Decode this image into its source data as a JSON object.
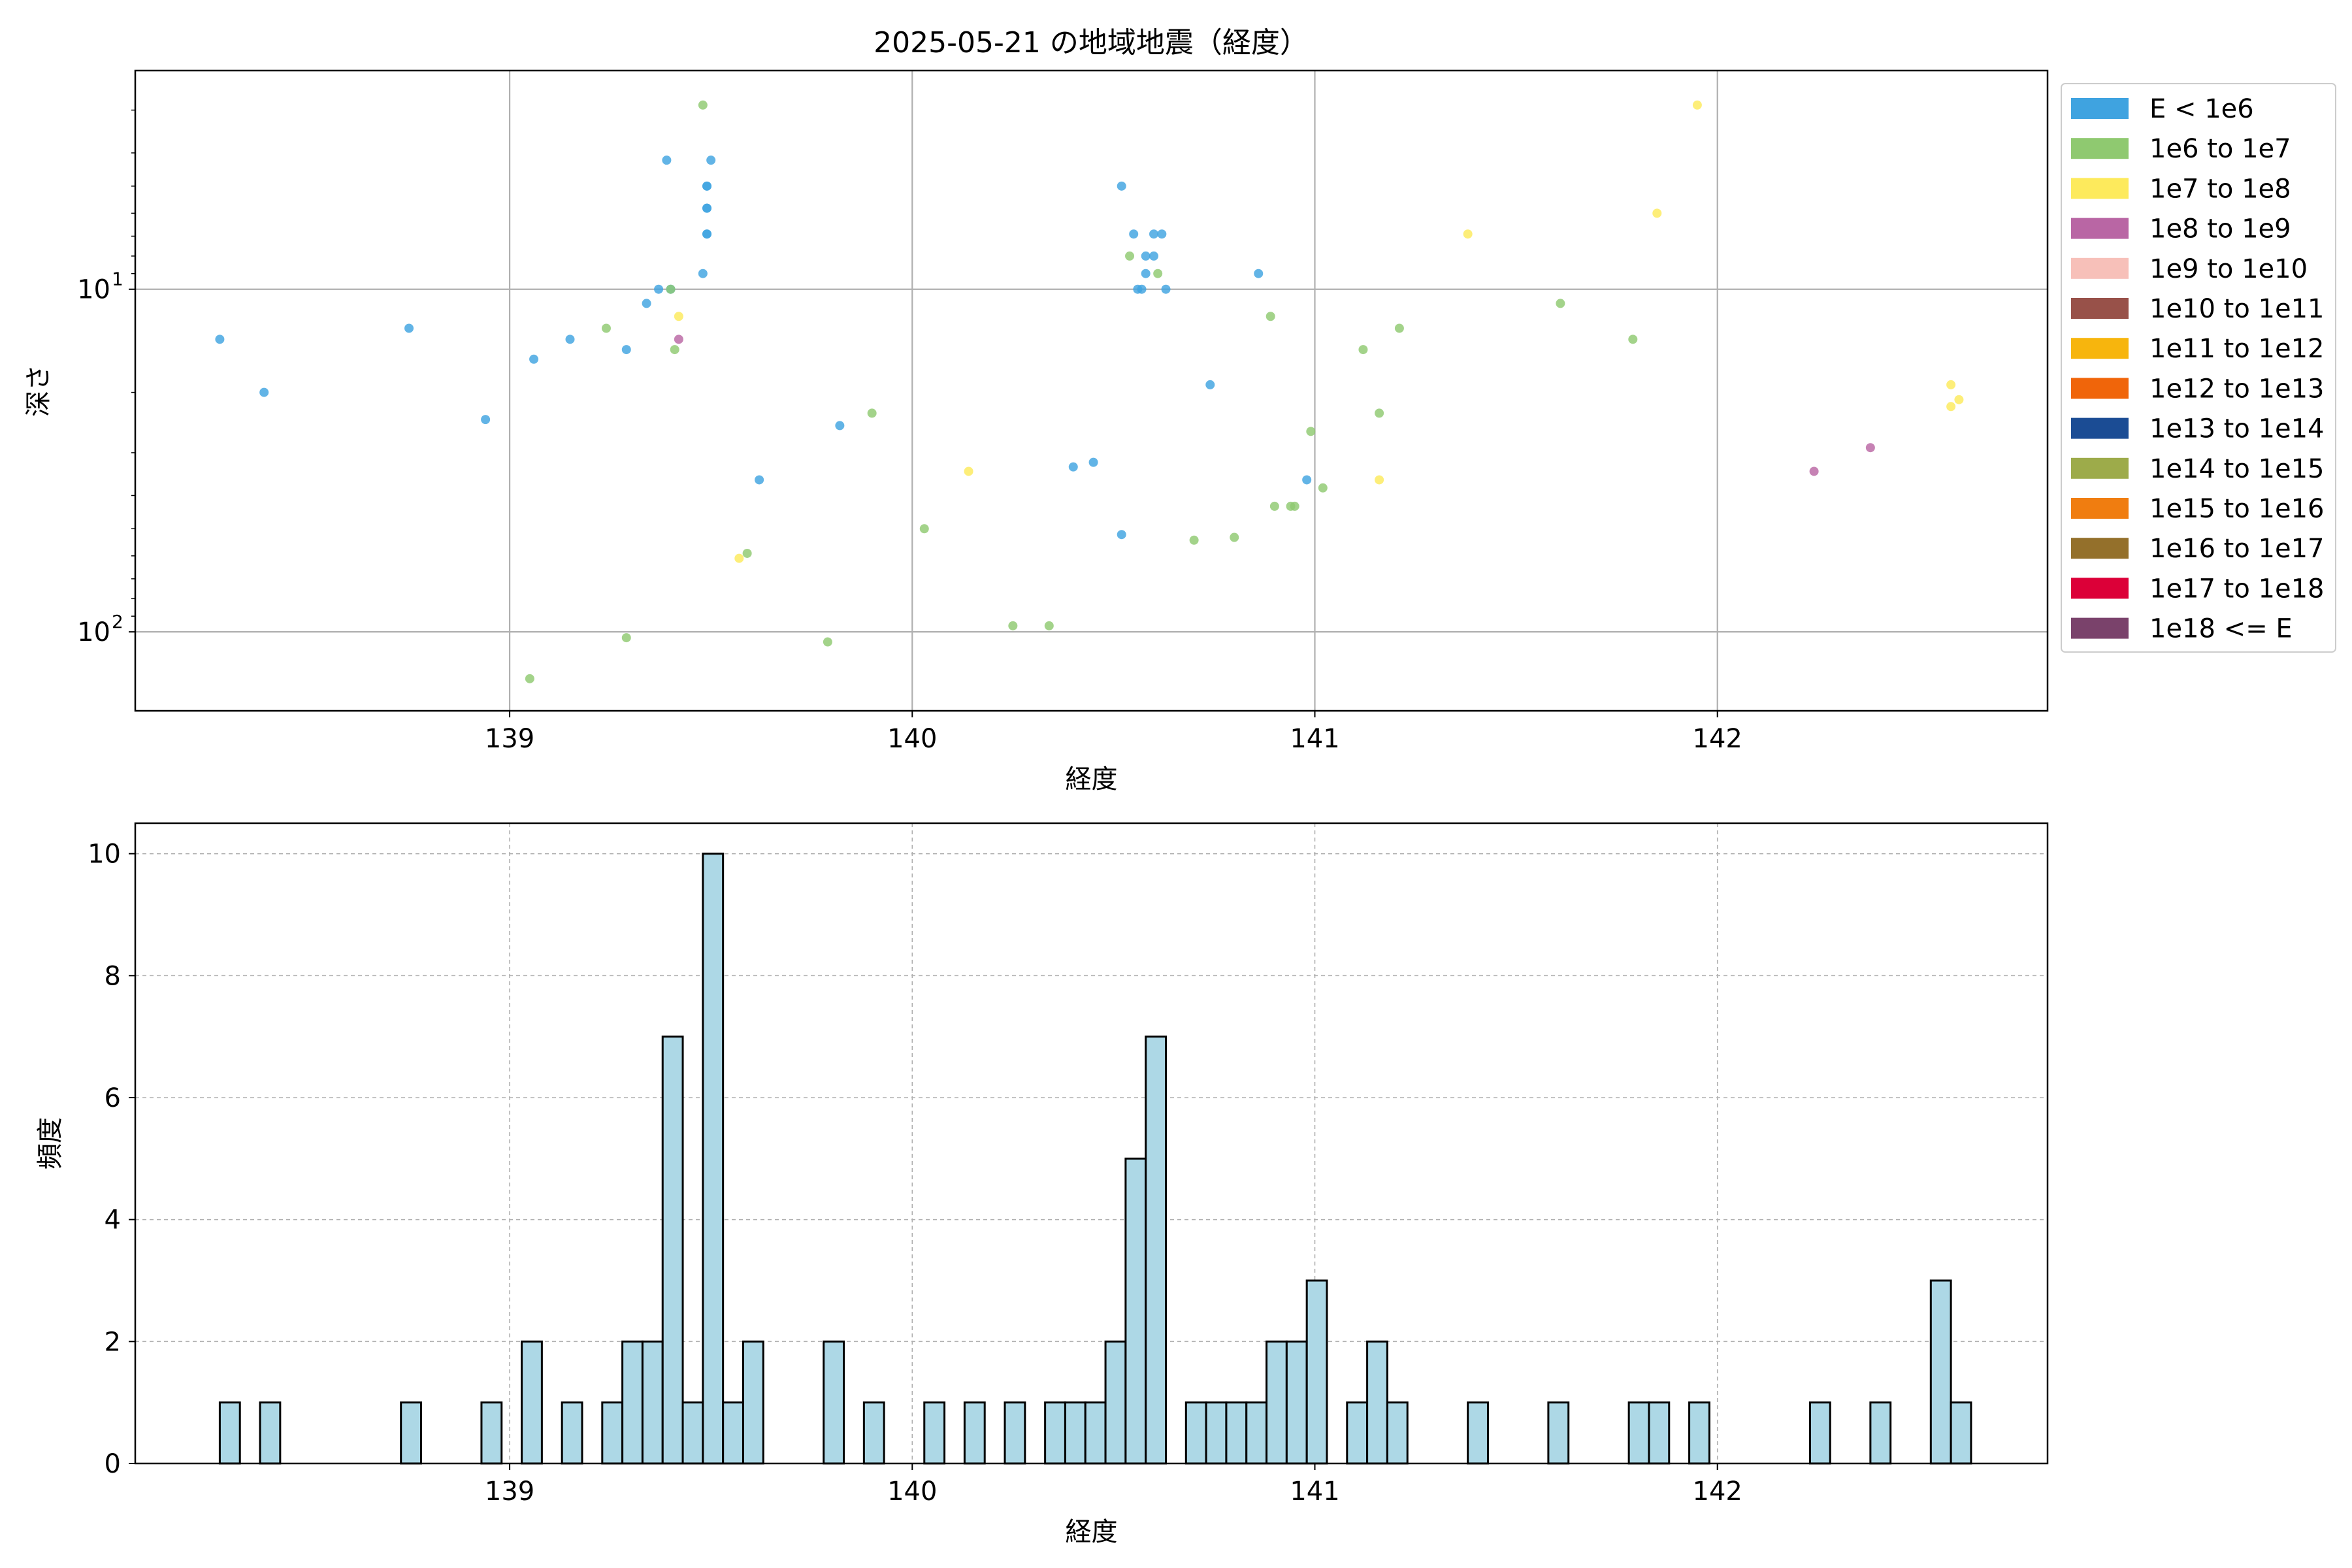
{
  "figure": {
    "title": "2025-05-21 の地域地震（経度）"
  },
  "chart_data": [
    {
      "type": "scatter",
      "title": "2025-05-21 の地域地震（経度）",
      "xlabel": "経度",
      "ylabel": "深さ",
      "xlim": [
        138.07,
        142.82
      ],
      "ylim": [
        170,
        2.3
      ],
      "yscale": "log-inverted",
      "grid": true,
      "legend_placement": "outside-right",
      "xticks": [
        {
          "value": 139,
          "label": "139"
        },
        {
          "value": 140,
          "label": "140"
        },
        {
          "value": 141,
          "label": "141"
        },
        {
          "value": 142,
          "label": "142"
        }
      ],
      "yticks": [
        {
          "value": 10,
          "label": "10",
          "exp": "1"
        },
        {
          "value": 100,
          "label": "10",
          "exp": "2"
        }
      ],
      "legend": [
        {
          "label": "E < 1e6",
          "color": "#3fa3e0"
        },
        {
          "label": "1e6 to 1e7",
          "color": "#8fc970"
        },
        {
          "label": "1e7 to 1e8",
          "color": "#fdea5c"
        },
        {
          "label": "1e8 to 1e9",
          "color": "#b966a4"
        },
        {
          "label": "1e9 to 1e10",
          "color": "#f7c0b9"
        },
        {
          "label": "1e10 to 1e11",
          "color": "#985149"
        },
        {
          "label": "1e11 to 1e12",
          "color": "#f7b50d"
        },
        {
          "label": "1e12 to 1e13",
          "color": "#f0650a"
        },
        {
          "label": "1e13 to 1e14",
          "color": "#1b4c94"
        },
        {
          "label": "1e14 to 1e15",
          "color": "#9dab4a"
        },
        {
          "label": "1e15 to 1e16",
          "color": "#f07d10"
        },
        {
          "label": "1e16 to 1e17",
          "color": "#94702b"
        },
        {
          "label": "1e17 to 1e18",
          "color": "#dc0038"
        },
        {
          "label": "1e18 <= E",
          "color": "#7a426b"
        }
      ],
      "series": [
        {
          "name": "E < 1e6",
          "points": [
            [
              138.28,
              14
            ],
            [
              138.39,
              20
            ],
            [
              138.75,
              13
            ],
            [
              138.94,
              24
            ],
            [
              139.06,
              16
            ],
            [
              139.15,
              14
            ],
            [
              139.29,
              15
            ],
            [
              139.34,
              11
            ],
            [
              139.37,
              10
            ],
            [
              139.4,
              10
            ],
            [
              139.39,
              4.2
            ],
            [
              139.48,
              9
            ],
            [
              139.49,
              6.9
            ],
            [
              139.49,
              6.9
            ],
            [
              139.49,
              5.8
            ],
            [
              139.49,
              5.8
            ],
            [
              139.49,
              5
            ],
            [
              139.49,
              5
            ],
            [
              139.5,
              4.2
            ],
            [
              139.62,
              36
            ],
            [
              139.82,
              25
            ],
            [
              140.4,
              33
            ],
            [
              140.45,
              32
            ],
            [
              140.52,
              52
            ],
            [
              140.52,
              5
            ],
            [
              140.55,
              6.9
            ],
            [
              140.56,
              10
            ],
            [
              140.57,
              10
            ],
            [
              140.58,
              9
            ],
            [
              140.58,
              8
            ],
            [
              140.6,
              8
            ],
            [
              140.6,
              6.9
            ],
            [
              140.62,
              6.9
            ],
            [
              140.63,
              10
            ],
            [
              140.74,
              19
            ],
            [
              140.86,
              9
            ],
            [
              140.98,
              36
            ]
          ]
        },
        {
          "name": "1e6 to 1e7",
          "points": [
            [
              139.05,
              137
            ],
            [
              139.24,
              13
            ],
            [
              139.29,
              104
            ],
            [
              139.4,
              10
            ],
            [
              139.41,
              15
            ],
            [
              139.48,
              2.9
            ],
            [
              139.59,
              59
            ],
            [
              139.79,
              107
            ],
            [
              139.9,
              23
            ],
            [
              140.03,
              50
            ],
            [
              140.25,
              96
            ],
            [
              140.34,
              96
            ],
            [
              140.54,
              8
            ],
            [
              140.61,
              9
            ],
            [
              140.7,
              54
            ],
            [
              140.8,
              53
            ],
            [
              140.89,
              12
            ],
            [
              140.9,
              43
            ],
            [
              140.94,
              43
            ],
            [
              140.95,
              43
            ],
            [
              140.99,
              26
            ],
            [
              141.02,
              38
            ],
            [
              141.12,
              15
            ],
            [
              141.16,
              23
            ],
            [
              141.21,
              13
            ],
            [
              141.61,
              11
            ],
            [
              141.79,
              14
            ]
          ]
        },
        {
          "name": "1e7 to 1e8",
          "points": [
            [
              139.42,
              12
            ],
            [
              139.57,
              61
            ],
            [
              140.14,
              34
            ],
            [
              141.16,
              36
            ],
            [
              141.38,
              6.9
            ],
            [
              141.85,
              6
            ],
            [
              141.95,
              2.9
            ],
            [
              142.58,
              19
            ],
            [
              142.58,
              22
            ],
            [
              142.6,
              21
            ]
          ]
        },
        {
          "name": "1e8 to 1e9",
          "points": [
            [
              139.42,
              14
            ],
            [
              142.24,
              34
            ],
            [
              142.38,
              29
            ]
          ]
        }
      ]
    },
    {
      "type": "bar",
      "title": "",
      "xlabel": "経度",
      "ylabel": "頻度",
      "xlim": [
        138.07,
        142.82
      ],
      "ylim": [
        0,
        10.5
      ],
      "grid": true,
      "bin_width": 0.05,
      "color": "#add8e6",
      "xticks": [
        {
          "value": 139,
          "label": "139"
        },
        {
          "value": 140,
          "label": "140"
        },
        {
          "value": 141,
          "label": "141"
        },
        {
          "value": 142,
          "label": "142"
        }
      ],
      "yticks": [
        {
          "value": 0,
          "label": "0"
        },
        {
          "value": 2,
          "label": "2"
        },
        {
          "value": 4,
          "label": "4"
        },
        {
          "value": 6,
          "label": "6"
        },
        {
          "value": 8,
          "label": "8"
        },
        {
          "value": 10,
          "label": "10"
        }
      ],
      "bins": [
        [
          138.28,
          1
        ],
        [
          138.38,
          1
        ],
        [
          138.73,
          1
        ],
        [
          138.93,
          1
        ],
        [
          139.03,
          2
        ],
        [
          139.13,
          1
        ],
        [
          139.23,
          1
        ],
        [
          139.28,
          2
        ],
        [
          139.33,
          2
        ],
        [
          139.38,
          7
        ],
        [
          139.43,
          1
        ],
        [
          139.48,
          10
        ],
        [
          139.53,
          1
        ],
        [
          139.58,
          2
        ],
        [
          139.78,
          2
        ],
        [
          139.88,
          1
        ],
        [
          140.03,
          1
        ],
        [
          140.13,
          1
        ],
        [
          140.23,
          1
        ],
        [
          140.33,
          1
        ],
        [
          140.38,
          1
        ],
        [
          140.43,
          1
        ],
        [
          140.48,
          2
        ],
        [
          140.53,
          5
        ],
        [
          140.58,
          7
        ],
        [
          140.68,
          1
        ],
        [
          140.73,
          1
        ],
        [
          140.78,
          1
        ],
        [
          140.83,
          1
        ],
        [
          140.88,
          2
        ],
        [
          140.93,
          2
        ],
        [
          140.98,
          3
        ],
        [
          141.08,
          1
        ],
        [
          141.13,
          2
        ],
        [
          141.18,
          1
        ],
        [
          141.38,
          1
        ],
        [
          141.58,
          1
        ],
        [
          141.78,
          1
        ],
        [
          141.83,
          1
        ],
        [
          141.93,
          1
        ],
        [
          142.23,
          1
        ],
        [
          142.38,
          1
        ],
        [
          142.53,
          3
        ],
        [
          142.58,
          1
        ]
      ]
    }
  ]
}
